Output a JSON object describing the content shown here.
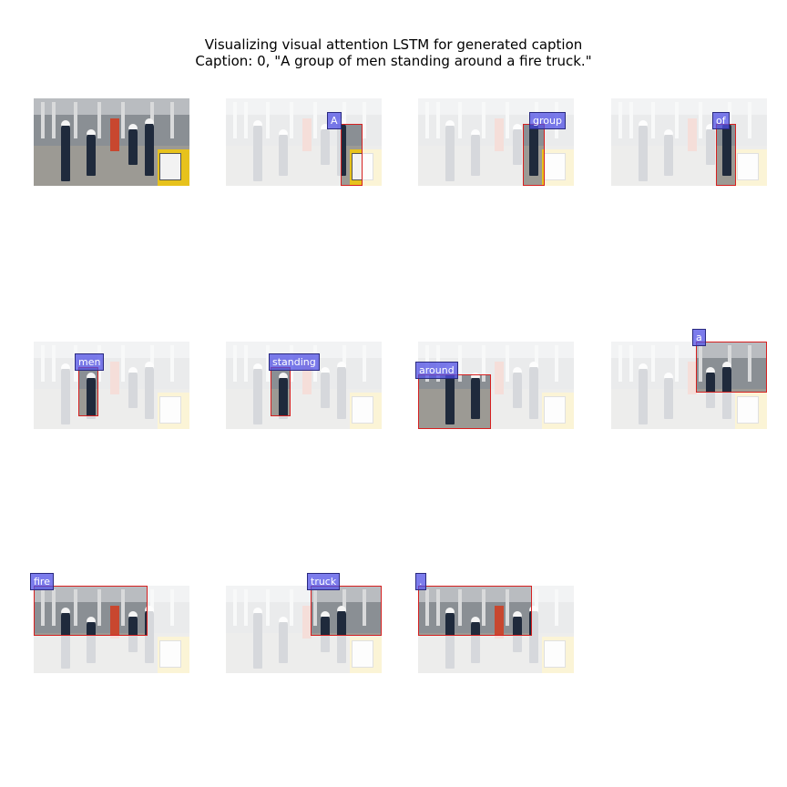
{
  "figure": {
    "title": "Visualizing visual attention LSTM for generated caption",
    "caption_line": "Caption: 0, \"A group of men standing around a fire truck.\""
  },
  "panels": [
    {
      "word": ""
    },
    {
      "word": "A"
    },
    {
      "word": "group"
    },
    {
      "word": "of"
    },
    {
      "word": "men"
    },
    {
      "word": "standing"
    },
    {
      "word": "around"
    },
    {
      "word": "a"
    },
    {
      "word": "fire"
    },
    {
      "word": "truck"
    },
    {
      "word": "."
    }
  ],
  "colors": {
    "box_outline": "#d62020",
    "label_fill": "#5050e6"
  }
}
